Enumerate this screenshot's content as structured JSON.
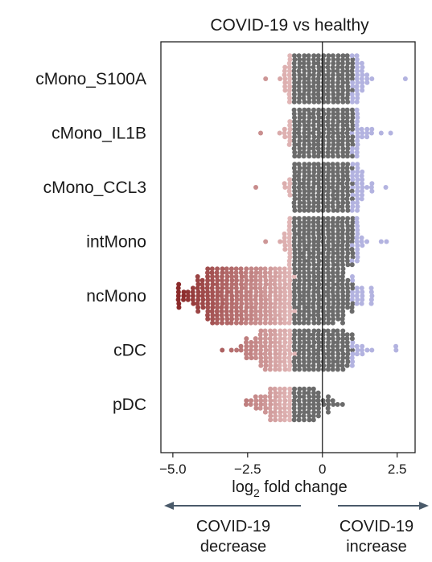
{
  "chart_data": {
    "type": "beeswarm",
    "title": "COVID-19 vs healthy",
    "xlabel_main": "log",
    "xlabel_sub": "2",
    "xlabel_tail": " fold change",
    "xlim": [
      -5.4,
      3.1
    ],
    "xticks": [
      -5.0,
      -2.5,
      0,
      2.5
    ],
    "xtick_labels": [
      "−5.0",
      "−2.5",
      "0",
      "2.5"
    ],
    "reference_line_x": 0,
    "grid": false,
    "colors": {
      "decrease": "#8b2a2a",
      "decrease_light": "#e2b8b8",
      "neutral": "#6b6b6b",
      "increase": "#b3b3e0",
      "arrow": "#4a5a6a"
    },
    "categories": [
      "cMono_S100A",
      "cMono_IL1B",
      "cMono_CCL3",
      "intMono",
      "ncMono",
      "cDC",
      "pDC"
    ],
    "series": [
      {
        "category": "cMono_S100A",
        "center": 0.05,
        "spread": 0.45,
        "min": -1.9,
        "max": 2.8,
        "core_width": 1.05,
        "n": 2400
      },
      {
        "category": "cMono_IL1B",
        "center": 0.05,
        "spread": 0.45,
        "min": -2.1,
        "max": 2.3,
        "core_width": 1.0,
        "n": 2200
      },
      {
        "category": "cMono_CCL3",
        "center": 0.1,
        "spread": 0.45,
        "min": -2.2,
        "max": 2.2,
        "core_width": 1.0,
        "n": 2200
      },
      {
        "category": "intMono",
        "center": 0.0,
        "spread": 0.45,
        "min": -1.9,
        "max": 2.2,
        "core_width": 1.0,
        "n": 2100
      },
      {
        "category": "ncMono",
        "center": -1.6,
        "spread": 1.05,
        "min": -4.8,
        "max": 1.6,
        "core_width": 0,
        "n": 2600
      },
      {
        "category": "cDC",
        "center": -0.7,
        "spread": 0.75,
        "min": -3.3,
        "max": 2.5,
        "core_width": 0,
        "n": 650
      },
      {
        "category": "pDC",
        "center": -1.0,
        "spread": 0.6,
        "min": -2.6,
        "max": 0.6,
        "core_width": 0,
        "n": 180
      }
    ]
  },
  "annotations": {
    "left_label_line1": "COVID-19",
    "left_label_line2": "decrease",
    "right_label_line1": "COVID-19",
    "right_label_line2": "increase"
  }
}
